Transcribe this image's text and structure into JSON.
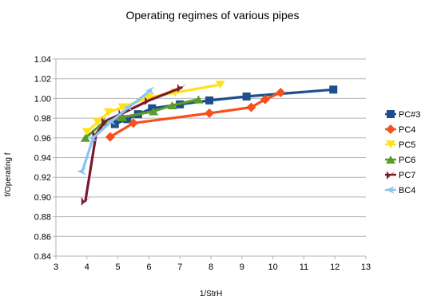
{
  "chart_data": {
    "type": "line",
    "title": "Operating regimes of various pipes",
    "xlabel": "1/StrH",
    "ylabel": "f/Operating f",
    "xlim": [
      3,
      13
    ],
    "ylim": [
      0.84,
      1.04
    ],
    "x_ticks": [
      3,
      4,
      5,
      6,
      7,
      8,
      9,
      10,
      11,
      12,
      13
    ],
    "y_ticks": [
      0.84,
      0.86,
      0.88,
      0.9,
      0.92,
      0.94,
      0.96,
      0.98,
      1.0,
      1.02,
      1.04
    ],
    "x_tick_labels": [
      "3",
      "4",
      "5",
      "6",
      "7",
      "8",
      "9",
      "10",
      "11",
      "12",
      "13"
    ],
    "y_tick_labels": [
      "0.84",
      "0.86",
      "0.88",
      "0.90",
      "0.92",
      "0.94",
      "0.96",
      "0.98",
      "1.00",
      "1.02",
      "1.04"
    ],
    "grid": {
      "y": true,
      "x": false
    },
    "legend_position": "right",
    "series": [
      {
        "name": "PC#3",
        "color": "#1f4e8c",
        "marker": "square",
        "x": [
          4.9,
          5.3,
          5.65,
          6.1,
          7.0,
          7.95,
          9.15,
          11.95
        ],
        "y": [
          0.974,
          0.979,
          0.984,
          0.99,
          0.994,
          0.998,
          1.002,
          1.009
        ]
      },
      {
        "name": "PC4",
        "color": "#f4511e",
        "marker": "diamond",
        "x": [
          4.75,
          5.5,
          7.95,
          9.3,
          9.75,
          10.25
        ],
        "y": [
          0.961,
          0.975,
          0.985,
          0.991,
          0.999,
          1.006
        ]
      },
      {
        "name": "PC5",
        "color": "#ffe11a",
        "marker": "triangle-down",
        "x": [
          4.0,
          4.35,
          4.7,
          5.15,
          6.0,
          6.85,
          8.3
        ],
        "y": [
          0.966,
          0.976,
          0.986,
          0.991,
          1.001,
          1.006,
          1.014
        ]
      },
      {
        "name": "PC6",
        "color": "#5b9b29",
        "marker": "triangle-up",
        "x": [
          3.95,
          4.55,
          5.15,
          6.15,
          6.75,
          7.6
        ],
        "y": [
          0.96,
          0.976,
          0.981,
          0.987,
          0.993,
          0.999
        ]
      },
      {
        "name": "PC7",
        "color": "#7b1930",
        "marker": "arrow",
        "x": [
          3.95,
          4.3,
          4.6,
          5.15,
          6.0,
          7.05
        ],
        "y": [
          0.896,
          0.964,
          0.977,
          0.985,
          0.998,
          1.011
        ]
      },
      {
        "name": "BC4",
        "color": "#88c4f4",
        "marker": "arrow-left",
        "x": [
          3.85,
          4.2,
          4.8,
          5.35,
          6.05
        ],
        "y": [
          0.926,
          0.96,
          0.977,
          0.991,
          1.008
        ]
      }
    ]
  }
}
